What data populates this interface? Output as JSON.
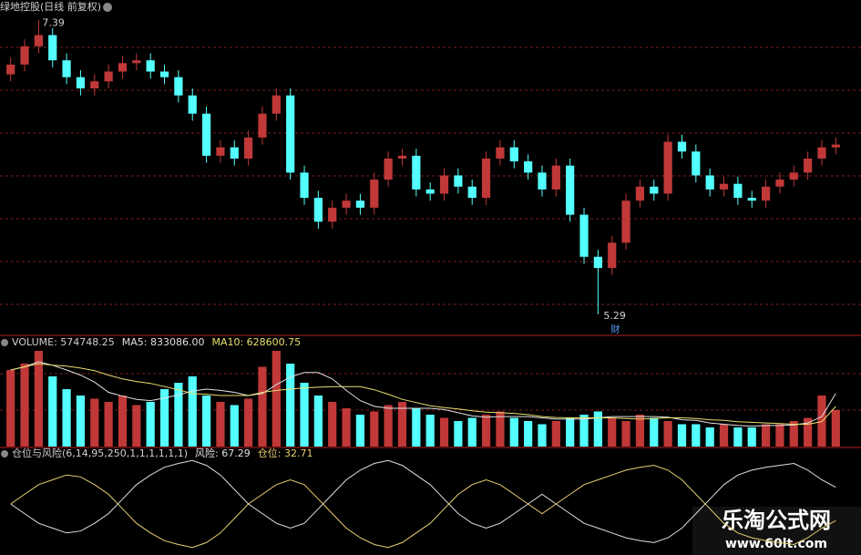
{
  "chart_data": [
    {
      "type": "candlestick",
      "title": "绿地控股(日线 前复权)",
      "open": [
        7.0,
        7.07,
        7.2,
        7.28,
        7.1,
        6.98,
        6.9,
        6.95,
        7.02,
        7.08,
        7.1,
        7.02,
        6.98,
        6.85,
        6.72,
        6.42,
        6.48,
        6.4,
        6.55,
        6.72,
        6.85,
        6.3,
        6.12,
        5.95,
        6.05,
        6.1,
        6.05,
        6.25,
        6.4,
        6.42,
        6.18,
        6.15,
        6.28,
        6.2,
        6.12,
        6.4,
        6.48,
        6.38,
        6.3,
        6.18,
        6.35,
        6.0,
        5.7,
        5.62,
        5.8,
        6.1,
        6.2,
        6.15,
        6.52,
        6.45,
        6.28,
        6.18,
        6.22,
        6.12,
        6.1,
        6.2,
        6.25,
        6.3,
        6.4,
        6.48
      ],
      "high": [
        7.12,
        7.25,
        7.39,
        7.33,
        7.15,
        7.03,
        7.0,
        7.07,
        7.13,
        7.15,
        7.15,
        7.07,
        7.03,
        6.9,
        6.77,
        6.53,
        6.53,
        6.6,
        6.77,
        6.9,
        6.9,
        6.35,
        6.17,
        6.1,
        6.15,
        6.15,
        6.3,
        6.45,
        6.47,
        6.47,
        6.23,
        6.33,
        6.33,
        6.25,
        6.45,
        6.53,
        6.53,
        6.43,
        6.35,
        6.4,
        6.4,
        6.05,
        5.75,
        5.85,
        6.15,
        6.25,
        6.25,
        6.57,
        6.57,
        6.5,
        6.33,
        6.27,
        6.27,
        6.17,
        6.25,
        6.3,
        6.35,
        6.45,
        6.53,
        6.55
      ],
      "low": [
        6.95,
        7.02,
        7.15,
        7.05,
        6.93,
        6.85,
        6.85,
        6.9,
        6.97,
        7.03,
        6.97,
        6.93,
        6.8,
        6.67,
        6.37,
        6.37,
        6.35,
        6.35,
        6.5,
        6.67,
        6.25,
        6.07,
        5.9,
        5.9,
        6.0,
        6.0,
        6.0,
        6.2,
        6.35,
        6.13,
        6.1,
        6.1,
        6.15,
        6.07,
        6.07,
        6.35,
        6.33,
        6.25,
        6.13,
        6.13,
        5.95,
        5.65,
        5.29,
        5.57,
        5.75,
        6.05,
        6.1,
        6.1,
        6.4,
        6.23,
        6.13,
        6.13,
        6.07,
        6.05,
        6.05,
        6.15,
        6.2,
        6.25,
        6.35,
        6.43
      ],
      "close": [
        7.07,
        7.2,
        7.28,
        7.1,
        6.98,
        6.9,
        6.95,
        7.02,
        7.08,
        7.1,
        7.02,
        6.98,
        6.85,
        6.72,
        6.42,
        6.48,
        6.4,
        6.55,
        6.72,
        6.85,
        6.3,
        6.12,
        5.95,
        6.05,
        6.1,
        6.05,
        6.25,
        6.4,
        6.42,
        6.18,
        6.15,
        6.28,
        6.2,
        6.12,
        6.4,
        6.48,
        6.38,
        6.3,
        6.18,
        6.35,
        6.0,
        5.7,
        5.62,
        5.8,
        6.1,
        6.2,
        6.15,
        6.52,
        6.45,
        6.28,
        6.18,
        6.22,
        6.12,
        6.1,
        6.2,
        6.25,
        6.3,
        6.4,
        6.48,
        6.5
      ],
      "up_color": "#c03838",
      "down_color": "#54ffff",
      "ylim": [
        5.14,
        7.53
      ],
      "high_label": "7.39",
      "low_label": "5.29",
      "marker": "财"
    },
    {
      "type": "bar",
      "title": "VOLUME: 574748.25",
      "values": [
        1200000,
        1300000,
        1500000,
        1100000,
        900000,
        800000,
        750000,
        700000,
        800000,
        650000,
        700000,
        900000,
        1000000,
        1100000,
        800000,
        700000,
        650000,
        750000,
        1250000,
        1500000,
        1300000,
        1000000,
        800000,
        700000,
        600000,
        500000,
        550000,
        650000,
        700000,
        600000,
        500000,
        450000,
        400000,
        450000,
        500000,
        550000,
        450000,
        400000,
        350000,
        400000,
        450000,
        500000,
        550000,
        450000,
        400000,
        500000,
        450000,
        400000,
        350000,
        350000,
        300000,
        350000,
        300000,
        300000,
        350000,
        350000,
        400000,
        450000,
        800000,
        574748.25
      ],
      "series": [
        {
          "name": "MA5: 833086.00",
          "color": "#e0e0e0",
          "values": [
            1200000,
            1250000,
            1330000,
            1275000,
            1200000,
            1120000,
            1010000,
            850000,
            790000,
            740000,
            720000,
            760000,
            810000,
            870000,
            900000,
            880000,
            850000,
            800000,
            830000,
            970000,
            1090000,
            1160000,
            1160000,
            1060000,
            880000,
            720000,
            630000,
            600000,
            600000,
            600000,
            600000,
            580000,
            530000,
            480000,
            460000,
            470000,
            470000,
            470000,
            450000,
            430000,
            430000,
            430000,
            450000,
            470000,
            470000,
            470000,
            470000,
            460000,
            420000,
            410000,
            370000,
            350000,
            330000,
            320000,
            330000,
            330000,
            340000,
            370000,
            470000,
            833086
          ]
        },
        {
          "name": "MA10: 628600.75",
          "color": "#e8e070",
          "values": [
            1200000,
            1250000,
            1300000,
            1275000,
            1260000,
            1230000,
            1190000,
            1120000,
            1060000,
            1020000,
            990000,
            940000,
            890000,
            830000,
            820000,
            800000,
            800000,
            800000,
            850000,
            880000,
            900000,
            920000,
            930000,
            940000,
            940000,
            940000,
            890000,
            820000,
            740000,
            690000,
            640000,
            610000,
            590000,
            560000,
            540000,
            530000,
            520000,
            500000,
            470000,
            455000,
            450000,
            450000,
            450000,
            450000,
            440000,
            430000,
            440000,
            450000,
            450000,
            440000,
            420000,
            410000,
            390000,
            380000,
            370000,
            360000,
            350000,
            350000,
            390000,
            628600.75
          ]
        }
      ],
      "ylim": [
        0,
        1600000
      ]
    },
    {
      "type": "line",
      "title": "仓位与风险(6,14,95,250,1,1,1,1,1,1)",
      "series": [
        {
          "name": "风险: 67.29",
          "color": "#e0e0e0",
          "values": [
            50,
            40,
            30,
            25,
            20,
            22,
            30,
            40,
            55,
            70,
            80,
            88,
            92,
            95,
            90,
            80,
            65,
            50,
            40,
            30,
            25,
            30,
            45,
            60,
            75,
            85,
            92,
            95,
            90,
            80,
            70,
            55,
            40,
            30,
            25,
            30,
            40,
            50,
            60,
            50,
            40,
            30,
            25,
            20,
            15,
            12,
            10,
            15,
            25,
            40,
            55,
            70,
            80,
            85,
            88,
            90,
            92,
            85,
            75,
            67.29
          ]
        },
        {
          "name": "仓位: 32.71",
          "color": "#e8d070",
          "values": [
            50,
            60,
            70,
            75,
            80,
            78,
            70,
            60,
            45,
            30,
            20,
            12,
            8,
            5,
            10,
            20,
            35,
            50,
            60,
            70,
            75,
            70,
            55,
            40,
            25,
            15,
            8,
            5,
            10,
            20,
            30,
            45,
            60,
            70,
            75,
            70,
            60,
            50,
            40,
            50,
            60,
            70,
            75,
            80,
            85,
            88,
            90,
            85,
            75,
            60,
            45,
            30,
            20,
            15,
            12,
            10,
            8,
            15,
            25,
            32.71
          ]
        }
      ],
      "ylim": [
        0,
        100
      ]
    }
  ],
  "watermark": {
    "title": "乐淘公式网",
    "url": "www.60lt.com"
  }
}
